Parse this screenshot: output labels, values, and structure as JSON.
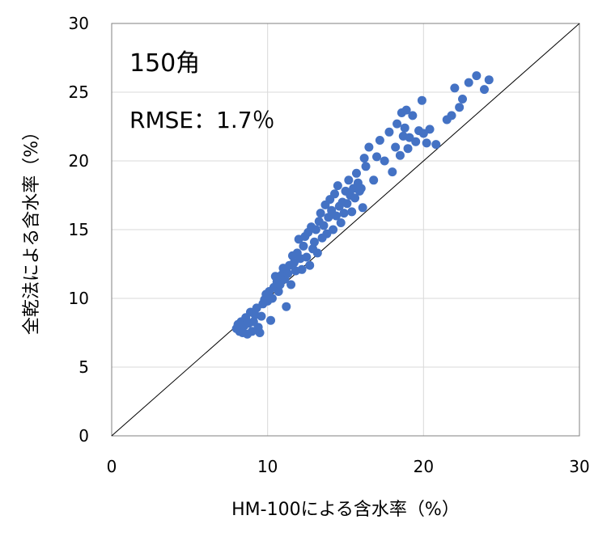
{
  "chart_data": {
    "type": "scatter",
    "xlabel": "HM-100による含水率（%）",
    "ylabel": "全乾法による含水率（%）",
    "xlim": [
      0,
      30
    ],
    "ylim": [
      0,
      30
    ],
    "x_ticks": [
      "0",
      "10",
      "20",
      "30"
    ],
    "y_ticks": [
      "0",
      "5",
      "10",
      "15",
      "20",
      "25",
      "30"
    ],
    "grid": true,
    "reference_line": "y = x",
    "annotations": {
      "size": "150角",
      "rmse": "RMSE：1.7％"
    },
    "marker_color": "#4472C4",
    "series": [
      {
        "values": [
          [
            8.0,
            7.8
          ],
          [
            8.1,
            8.1
          ],
          [
            8.2,
            7.6
          ],
          [
            8.3,
            8.3
          ],
          [
            8.4,
            7.5
          ],
          [
            8.5,
            8.0
          ],
          [
            8.6,
            8.6
          ],
          [
            8.7,
            7.4
          ],
          [
            8.8,
            8.2
          ],
          [
            8.9,
            9.0
          ],
          [
            9.0,
            7.6
          ],
          [
            9.1,
            8.3
          ],
          [
            9.2,
            8.8
          ],
          [
            9.3,
            9.3
          ],
          [
            9.4,
            7.9
          ],
          [
            9.5,
            7.5
          ],
          [
            9.6,
            8.7
          ],
          [
            9.7,
            9.6
          ],
          [
            9.8,
            9.9
          ],
          [
            9.9,
            10.3
          ],
          [
            10.0,
            9.8
          ],
          [
            10.1,
            10.5
          ],
          [
            10.2,
            8.4
          ],
          [
            10.3,
            10.0
          ],
          [
            10.4,
            10.8
          ],
          [
            10.5,
            11.6
          ],
          [
            10.6,
            11.2
          ],
          [
            10.7,
            10.5
          ],
          [
            10.8,
            11.0
          ],
          [
            10.9,
            11.7
          ],
          [
            11.0,
            12.2
          ],
          [
            11.1,
            11.4
          ],
          [
            11.2,
            9.4
          ],
          [
            11.3,
            11.8
          ],
          [
            11.4,
            12.4
          ],
          [
            11.5,
            11.0
          ],
          [
            11.6,
            13.1
          ],
          [
            11.7,
            12.6
          ],
          [
            11.8,
            12.0
          ],
          [
            11.9,
            13.3
          ],
          [
            12.0,
            14.3
          ],
          [
            12.1,
            12.9
          ],
          [
            12.2,
            12.1
          ],
          [
            12.3,
            13.8
          ],
          [
            12.4,
            14.5
          ],
          [
            12.5,
            13.0
          ],
          [
            12.6,
            14.8
          ],
          [
            12.7,
            12.4
          ],
          [
            12.8,
            15.2
          ],
          [
            12.9,
            13.6
          ],
          [
            13.0,
            14.1
          ],
          [
            13.1,
            15.0
          ],
          [
            13.2,
            13.3
          ],
          [
            13.3,
            15.6
          ],
          [
            13.4,
            16.2
          ],
          [
            13.5,
            14.4
          ],
          [
            13.6,
            15.3
          ],
          [
            13.7,
            16.8
          ],
          [
            13.8,
            14.7
          ],
          [
            13.9,
            15.9
          ],
          [
            14.0,
            17.2
          ],
          [
            14.1,
            16.4
          ],
          [
            14.2,
            15.0
          ],
          [
            14.3,
            17.6
          ],
          [
            14.4,
            16.0
          ],
          [
            14.5,
            18.2
          ],
          [
            14.6,
            16.7
          ],
          [
            14.7,
            15.5
          ],
          [
            14.8,
            17.0
          ],
          [
            14.9,
            16.2
          ],
          [
            15.0,
            17.8
          ],
          [
            15.1,
            16.9
          ],
          [
            15.2,
            18.6
          ],
          [
            15.3,
            17.5
          ],
          [
            15.4,
            16.3
          ],
          [
            15.5,
            18.0
          ],
          [
            15.6,
            17.3
          ],
          [
            15.7,
            19.1
          ],
          [
            15.8,
            18.4
          ],
          [
            15.9,
            17.8
          ],
          [
            16.0,
            18.0
          ],
          [
            16.1,
            16.6
          ],
          [
            16.2,
            20.2
          ],
          [
            16.3,
            19.6
          ],
          [
            16.5,
            21.0
          ],
          [
            16.8,
            18.6
          ],
          [
            17.0,
            20.3
          ],
          [
            17.2,
            21.5
          ],
          [
            17.5,
            20.0
          ],
          [
            17.8,
            22.1
          ],
          [
            18.0,
            19.2
          ],
          [
            18.2,
            21.0
          ],
          [
            18.3,
            22.7
          ],
          [
            18.5,
            20.4
          ],
          [
            18.6,
            23.5
          ],
          [
            18.7,
            21.8
          ],
          [
            18.8,
            22.4
          ],
          [
            18.9,
            23.7
          ],
          [
            19.0,
            20.9
          ],
          [
            19.1,
            21.7
          ],
          [
            19.3,
            23.3
          ],
          [
            19.5,
            21.4
          ],
          [
            19.7,
            22.2
          ],
          [
            19.9,
            24.4
          ],
          [
            20.0,
            22.0
          ],
          [
            20.2,
            21.3
          ],
          [
            20.4,
            22.3
          ],
          [
            20.8,
            21.2
          ],
          [
            21.5,
            23.0
          ],
          [
            21.8,
            23.3
          ],
          [
            22.0,
            25.3
          ],
          [
            22.3,
            23.9
          ],
          [
            22.5,
            24.5
          ],
          [
            22.9,
            25.7
          ],
          [
            23.4,
            26.2
          ],
          [
            23.9,
            25.2
          ],
          [
            24.2,
            25.9
          ]
        ]
      }
    ]
  }
}
